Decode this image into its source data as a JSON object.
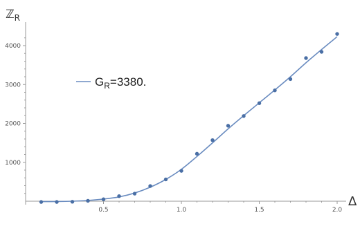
{
  "chart_data": {
    "type": "scatter",
    "title": "",
    "xlabel": "Δ",
    "ylabel_main": "ℤ",
    "ylabel_sub": "R",
    "xlim": [
      0.0,
      2.0
    ],
    "ylim": [
      0,
      4000
    ],
    "xticks": [
      0.5,
      1.0,
      1.5,
      2.0
    ],
    "xtick_labels": [
      "0.5",
      "1.0",
      "1.5",
      "2.0"
    ],
    "yticks": [
      1000,
      2000,
      3000,
      4000
    ],
    "ytick_labels": [
      "1000",
      "2000",
      "3000",
      "4000"
    ],
    "grid": false,
    "legend": {
      "placement": "middle-left",
      "label_main": "G",
      "label_sub": "R",
      "label_rest": "=3380."
    },
    "series": [
      {
        "kind": "points",
        "color": "#4a6fa5",
        "x": [
          0.1,
          0.2,
          0.3,
          0.4,
          0.5,
          0.6,
          0.7,
          0.8,
          0.9,
          1.0,
          1.1,
          1.2,
          1.3,
          1.4,
          1.5,
          1.6,
          1.7,
          1.8,
          1.9,
          2.0
        ],
        "y": [
          -20,
          -20,
          -15,
          10,
          50,
          130,
          195,
          390,
          560,
          780,
          1220,
          1570,
          1940,
          2190,
          2520,
          2850,
          3140,
          3680,
          3840,
          4300
        ]
      },
      {
        "kind": "line",
        "color": "#6a8cc0",
        "x": [
          0.1,
          0.2,
          0.3,
          0.4,
          0.5,
          0.6,
          0.7,
          0.8,
          0.9,
          1.0,
          1.1,
          1.2,
          1.3,
          1.4,
          1.5,
          1.6,
          1.7,
          1.8,
          1.9,
          2.0
        ],
        "y": [
          -10,
          -8,
          0,
          20,
          55,
          110,
          210,
          360,
          560,
          820,
          1150,
          1500,
          1860,
          2200,
          2530,
          2860,
          3200,
          3560,
          3900,
          4230
        ]
      }
    ]
  }
}
